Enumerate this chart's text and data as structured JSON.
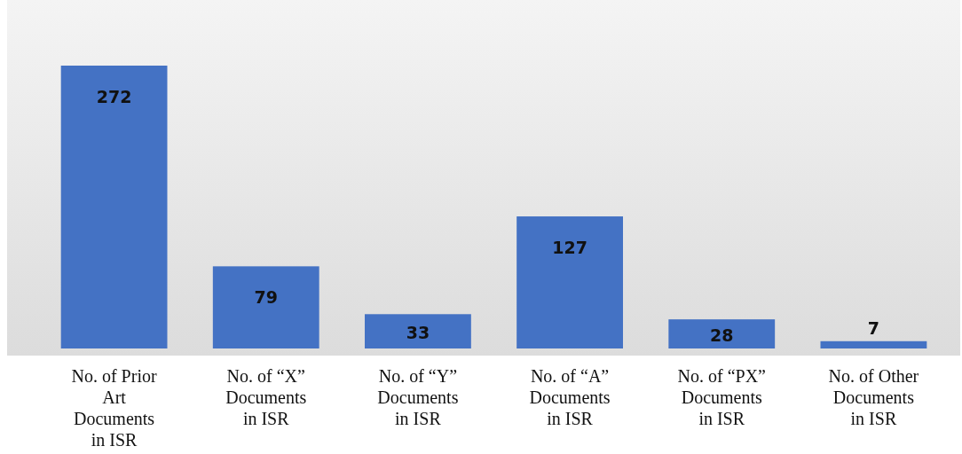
{
  "chart_data": {
    "type": "bar",
    "categories": [
      "No. of  Prior\nArt\nDocuments\nin ISR",
      "No. of “X”\nDocuments\nin ISR",
      "No. of “Y”\nDocuments\nin ISR",
      "No. of “A”\nDocuments\nin ISR",
      "No. of “PX”\nDocuments\nin ISR",
      "No. of Other\nDocuments\nin ISR"
    ],
    "values": [
      272,
      79,
      33,
      127,
      28,
      7
    ],
    "color": "#4472c4",
    "data_labels": true
  }
}
